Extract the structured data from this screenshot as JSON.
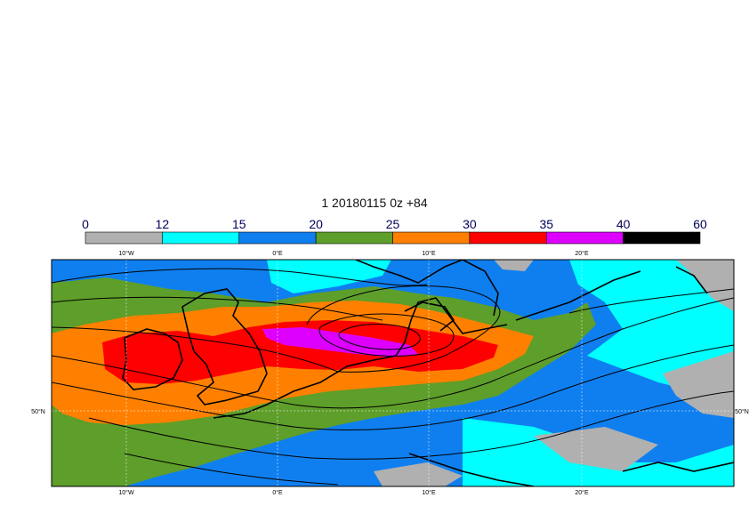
{
  "title": "1 20180115 0z +84",
  "legend": {
    "tick_labels": [
      "0",
      "12",
      "15",
      "20",
      "25",
      "30",
      "35",
      "40",
      "60"
    ],
    "bins": [
      {
        "from": 0,
        "to": 12,
        "color": "#b0b0b0"
      },
      {
        "from": 12,
        "to": 15,
        "color": "#00ffff"
      },
      {
        "from": 15,
        "to": 20,
        "color": "#0f7fef"
      },
      {
        "from": 20,
        "to": 25,
        "color": "#5e9e2a"
      },
      {
        "from": 25,
        "to": 30,
        "color": "#ff8000"
      },
      {
        "from": 30,
        "to": 35,
        "color": "#ff0000"
      },
      {
        "from": 35,
        "to": 40,
        "color": "#dd00ff"
      },
      {
        "from": 40,
        "to": 60,
        "color": "#000000"
      }
    ]
  },
  "map": {
    "top_lon_labels": [
      "10°W",
      "0°E",
      "10°E",
      "20°E"
    ],
    "bottom_lon_labels": [
      "10°W",
      "0°E",
      "10°E",
      "20°E"
    ],
    "left_lat_label": "50°N",
    "right_lat_label": "50°N"
  }
}
